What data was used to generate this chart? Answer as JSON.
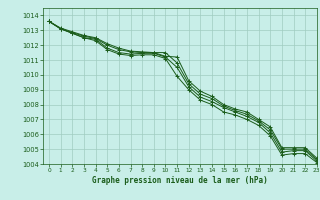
{
  "title": "Graphe pression niveau de la mer (hPa)",
  "background_color": "#c8eee8",
  "grid_color": "#a0ccc0",
  "line_color": "#1a5c1a",
  "text_color": "#1a5c1a",
  "xlim": [
    -0.5,
    23
  ],
  "ylim": [
    1004,
    1014.5
  ],
  "xticks": [
    0,
    1,
    2,
    3,
    4,
    5,
    6,
    7,
    8,
    9,
    10,
    11,
    12,
    13,
    14,
    15,
    16,
    17,
    18,
    19,
    20,
    21,
    22,
    23
  ],
  "yticks": [
    1004,
    1005,
    1006,
    1007,
    1008,
    1009,
    1010,
    1011,
    1012,
    1013,
    1014
  ],
  "series": [
    [
      1013.6,
      1013.1,
      1012.8,
      1012.5,
      1012.4,
      1011.8,
      1011.5,
      1011.4,
      1011.45,
      1011.45,
      1011.2,
      1010.5,
      1009.2,
      1008.5,
      1008.2,
      1007.8,
      1007.5,
      1007.2,
      1006.8,
      1006.1,
      1004.8,
      1004.9,
      1004.9,
      1004.2
    ],
    [
      1013.6,
      1013.1,
      1012.85,
      1012.6,
      1012.45,
      1012.0,
      1011.7,
      1011.55,
      1011.5,
      1011.5,
      1011.5,
      1010.8,
      1009.4,
      1008.7,
      1008.4,
      1007.9,
      1007.6,
      1007.35,
      1006.9,
      1006.3,
      1005.0,
      1005.0,
      1005.0,
      1004.3
    ],
    [
      1013.6,
      1013.15,
      1012.9,
      1012.65,
      1012.5,
      1012.1,
      1011.8,
      1011.6,
      1011.55,
      1011.5,
      1011.25,
      1011.2,
      1009.6,
      1008.9,
      1008.55,
      1008.0,
      1007.7,
      1007.5,
      1007.0,
      1006.5,
      1005.1,
      1005.1,
      1005.1,
      1004.4
    ],
    [
      1013.6,
      1013.1,
      1012.8,
      1012.5,
      1012.3,
      1011.7,
      1011.4,
      1011.3,
      1011.35,
      1011.35,
      1011.1,
      1009.9,
      1009.0,
      1008.3,
      1008.0,
      1007.5,
      1007.3,
      1007.0,
      1006.6,
      1005.9,
      1004.6,
      1004.7,
      1004.7,
      1004.1
    ]
  ],
  "figsize": [
    3.2,
    2.0
  ],
  "dpi": 100
}
